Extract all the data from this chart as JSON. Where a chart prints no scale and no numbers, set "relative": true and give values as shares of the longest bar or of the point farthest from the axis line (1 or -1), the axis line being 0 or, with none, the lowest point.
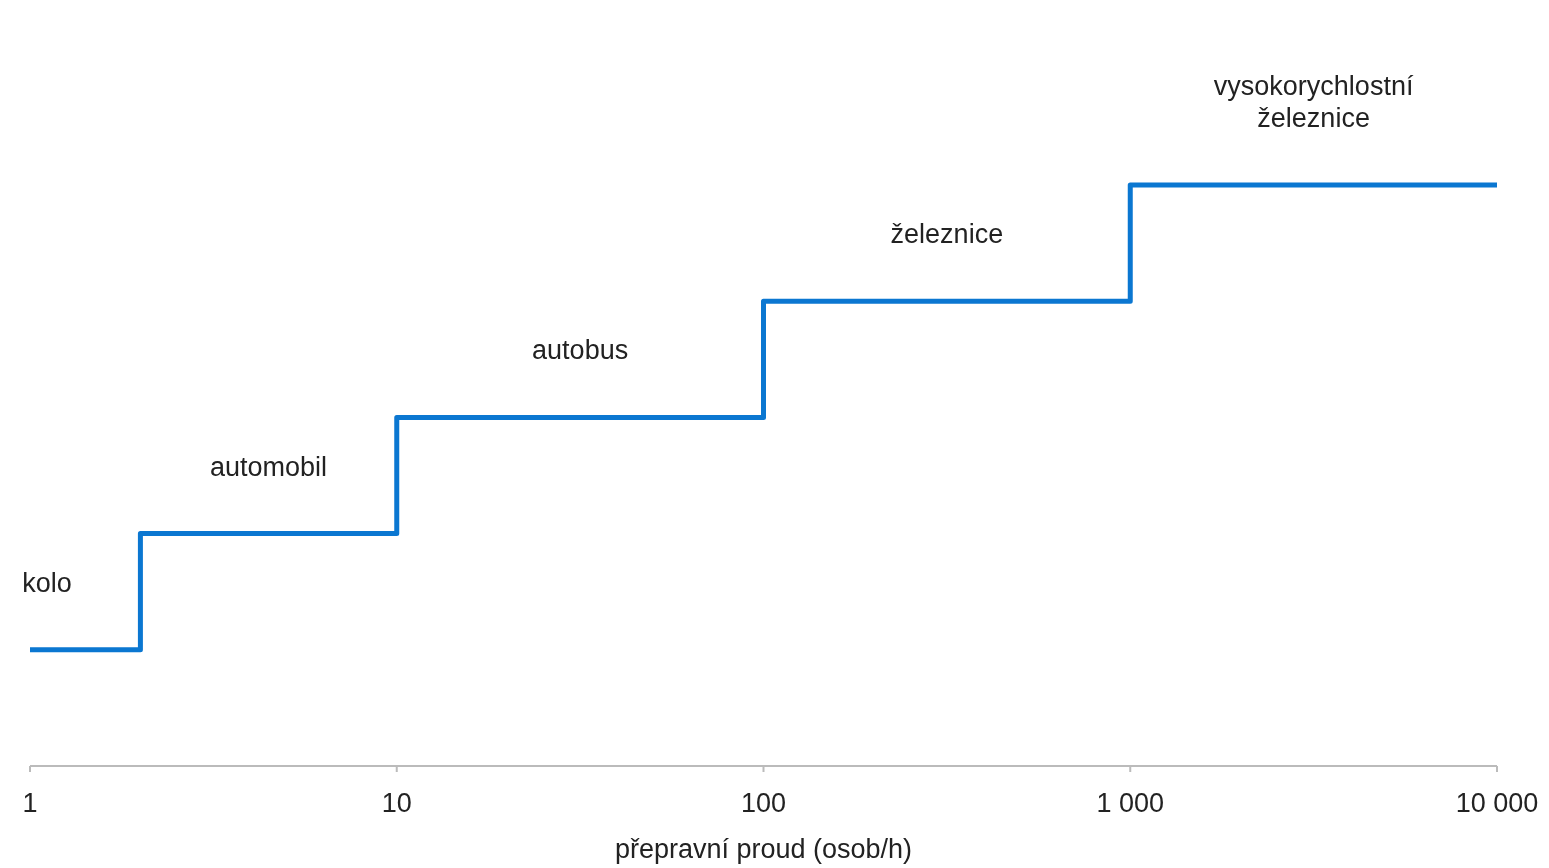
{
  "chart_data": {
    "type": "step",
    "relative": true,
    "xlabel": "přepravní proud (osob/h)",
    "log": "x",
    "x": [
      1,
      2,
      10,
      100,
      1000,
      10000
    ],
    "series": [
      {
        "color": "#0b77d1",
        "values": [
          0.2,
          0.4,
          0.6,
          0.8,
          1,
          1
        ]
      }
    ],
    "xlim": [
      1,
      10000
    ],
    "xticks": [
      1,
      10,
      100,
      {
        "value": 1000,
        "label": "1 000"
      },
      {
        "value": 10000,
        "label": "10 000"
      }
    ],
    "annotations": [
      "kolo",
      "automobil",
      "autobus",
      "železnice",
      "vysokorychlostní železnice"
    ],
    "grid": false
  }
}
